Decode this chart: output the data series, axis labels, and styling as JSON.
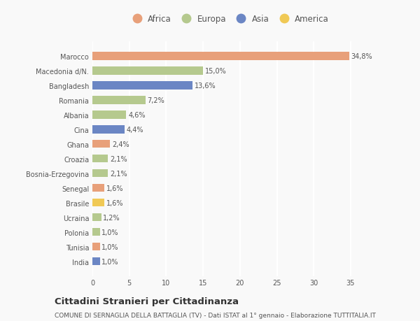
{
  "categories": [
    "India",
    "Tunisia",
    "Polonia",
    "Ucraina",
    "Brasile",
    "Senegal",
    "Bosnia-Erzegovina",
    "Croazia",
    "Ghana",
    "Cina",
    "Albania",
    "Romania",
    "Bangladesh",
    "Macedonia d/N.",
    "Marocco"
  ],
  "values": [
    1.0,
    1.0,
    1.0,
    1.2,
    1.6,
    1.6,
    2.1,
    2.1,
    2.4,
    4.4,
    4.6,
    7.2,
    13.6,
    15.0,
    34.8
  ],
  "labels": [
    "1,0%",
    "1,0%",
    "1,0%",
    "1,2%",
    "1,6%",
    "1,6%",
    "2,1%",
    "2,1%",
    "2,4%",
    "4,4%",
    "4,6%",
    "7,2%",
    "13,6%",
    "15,0%",
    "34,8%"
  ],
  "colors": [
    "#6b86c4",
    "#e8a07a",
    "#b5c98e",
    "#b5c98e",
    "#f0c955",
    "#e8a07a",
    "#b5c98e",
    "#b5c98e",
    "#e8a07a",
    "#6b86c4",
    "#b5c98e",
    "#b5c98e",
    "#6b86c4",
    "#b5c98e",
    "#e8a07a"
  ],
  "legend_labels": [
    "Africa",
    "Europa",
    "Asia",
    "America"
  ],
  "legend_colors": [
    "#e8a07a",
    "#b5c98e",
    "#6b86c4",
    "#f0c955"
  ],
  "title": "Cittadini Stranieri per Cittadinanza",
  "subtitle": "COMUNE DI SERNAGLIA DELLA BATTAGLIA (TV) - Dati ISTAT al 1° gennaio - Elaborazione TUTTITALIA.IT",
  "xlim": [
    0,
    37
  ],
  "xticks": [
    0,
    5,
    10,
    15,
    20,
    25,
    30,
    35
  ],
  "background_color": "#f9f9f9",
  "bar_height": 0.55,
  "title_fontsize": 9.5,
  "subtitle_fontsize": 6.5,
  "label_fontsize": 7,
  "tick_fontsize": 7,
  "legend_fontsize": 8.5,
  "grid_color": "#ffffff",
  "text_color": "#555555"
}
